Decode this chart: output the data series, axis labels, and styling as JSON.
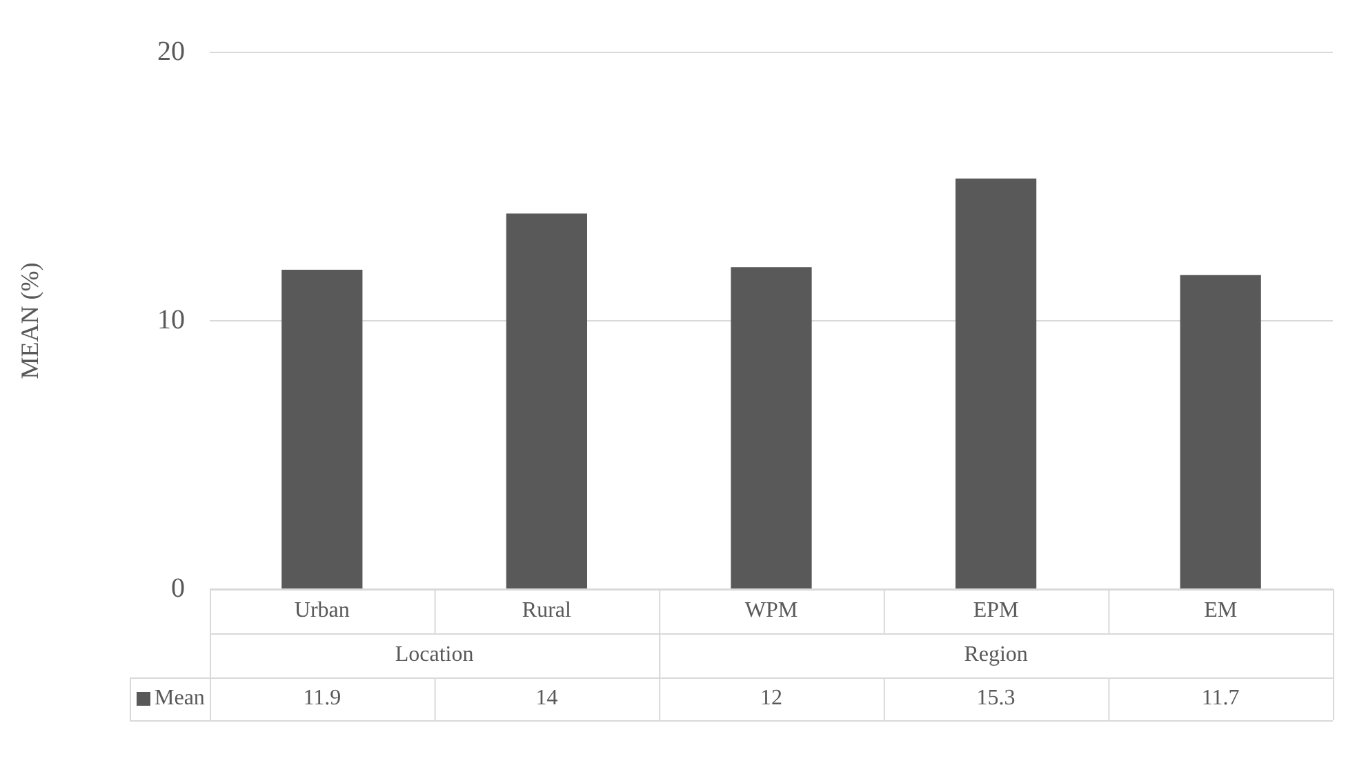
{
  "chart_data": {
    "type": "bar",
    "ylabel": "MEAN (%)",
    "categories": [
      "Urban",
      "Rural",
      "WPM",
      "EPM",
      "EM"
    ],
    "series": [
      {
        "name": "Mean",
        "color": "#595959",
        "values": [
          11.9,
          14,
          12,
          15.3,
          11.7
        ]
      }
    ],
    "ylim": [
      0,
      20
    ],
    "yticks": [
      0,
      10,
      20
    ],
    "grid": "y",
    "legend": "bottom",
    "data_labels": true,
    "annotations": [
      "Location",
      "Region"
    ]
  }
}
